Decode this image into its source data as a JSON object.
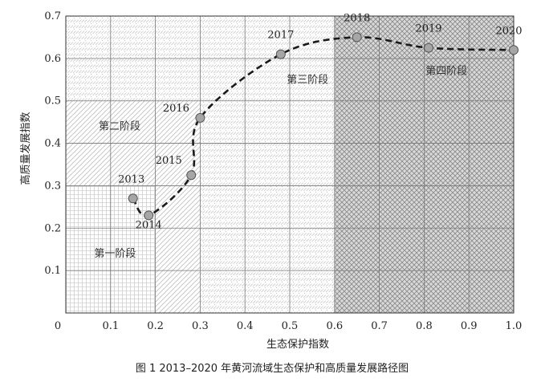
{
  "chart_data": {
    "type": "line",
    "caption": "图 1 2013–2020 年黄河流域生态保护和高质量发展路径图",
    "xlabel": "生态保护指数",
    "ylabel": "高质量发展指数",
    "xlim": [
      0,
      1.0
    ],
    "ylim": [
      0,
      0.7
    ],
    "xticks": [
      "0",
      "0.1",
      "0.2",
      "0.3",
      "0.4",
      "0.5",
      "0.6",
      "0.7",
      "0.8",
      "0.9",
      "1.0"
    ],
    "yticks": [
      "0.1",
      "0.2",
      "0.3",
      "0.4",
      "0.5",
      "0.6",
      "0.7"
    ],
    "grid": true,
    "series": [
      {
        "points": [
          {
            "label": "2013",
            "x": 0.15,
            "y": 0.27
          },
          {
            "label": "2014",
            "x": 0.185,
            "y": 0.23
          },
          {
            "label": "2015",
            "x": 0.28,
            "y": 0.325
          },
          {
            "label": "2016",
            "x": 0.3,
            "y": 0.46
          },
          {
            "label": "2017",
            "x": 0.48,
            "y": 0.61
          },
          {
            "label": "2018",
            "x": 0.65,
            "y": 0.65
          },
          {
            "label": "2019",
            "x": 0.81,
            "y": 0.625
          },
          {
            "label": "2020",
            "x": 1.0,
            "y": 0.62
          }
        ]
      }
    ],
    "regions": [
      {
        "label": "第一阶段",
        "x0": 0,
        "x1": 0.2,
        "y0": 0,
        "y1": 0.3,
        "pattern": "grid",
        "label_at": [
          0.11,
          0.14
        ]
      },
      {
        "label": "第二阶段",
        "x0": 0,
        "x1": 0.3,
        "y0": 0.3,
        "y1": 0.5,
        "pattern": "diagonal",
        "label_at": [
          0.12,
          0.44
        ]
      },
      {
        "label": "第二阶段",
        "x0": 0.2,
        "x1": 0.3,
        "y0": 0,
        "y1": 0.3,
        "pattern": "diagonal",
        "label_at": null
      },
      {
        "label": "第三阶段",
        "x0": 0,
        "x1": 0.6,
        "y0": 0.5,
        "y1": 0.7,
        "pattern": "dots",
        "label_at": [
          0.54,
          0.55
        ]
      },
      {
        "label": "第三阶段",
        "x0": 0.3,
        "x1": 0.6,
        "y0": 0,
        "y1": 0.5,
        "pattern": "dots",
        "label_at": null
      },
      {
        "label": "第四阶段",
        "x0": 0.6,
        "x1": 1.0,
        "y0": 0,
        "y1": 0.7,
        "pattern": "crosshatch",
        "label_at": [
          0.85,
          0.57
        ]
      }
    ]
  }
}
